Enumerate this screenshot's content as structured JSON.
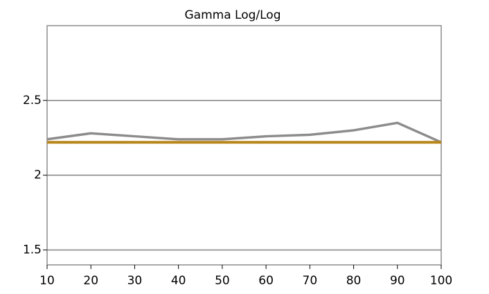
{
  "chart_data": {
    "type": "line",
    "title": "Gamma Log/Log",
    "x": [
      10,
      20,
      30,
      40,
      50,
      60,
      70,
      80,
      90,
      100
    ],
    "series": [
      {
        "color": "#8c8c8c",
        "values": [
          2.24,
          2.28,
          2.26,
          2.24,
          2.24,
          2.26,
          2.27,
          2.3,
          2.35,
          2.22
        ]
      },
      {
        "color": "#b8861a",
        "values": [
          2.22,
          2.22,
          2.22,
          2.22,
          2.22,
          2.22,
          2.22,
          2.22,
          2.22,
          2.22
        ]
      }
    ],
    "xlim": [
      10,
      100
    ],
    "xticks": [
      10,
      20,
      30,
      40,
      50,
      60,
      70,
      80,
      90,
      100
    ],
    "ylim": [
      1.4,
      3.0
    ],
    "yticks": [
      1.5,
      2,
      2.5
    ],
    "grid": true
  }
}
